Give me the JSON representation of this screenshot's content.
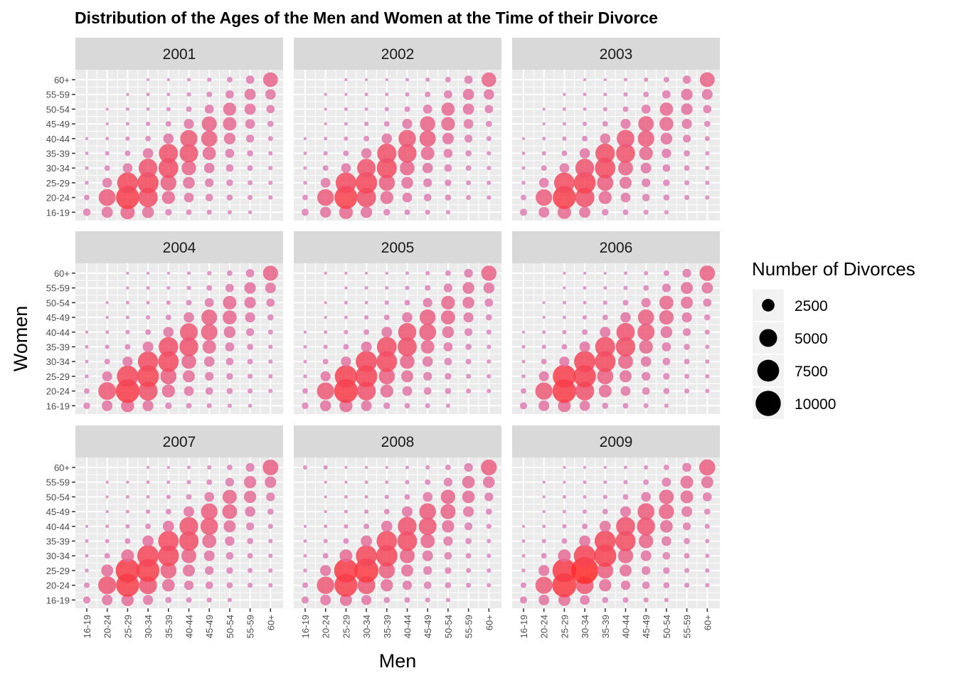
{
  "chart_data": {
    "type": "scatter",
    "title": "Distribution of the Ages of the Men and Women at the Time of their Divorce",
    "xlabel": "Men",
    "ylabel": "Women",
    "age_groups": [
      "16-19",
      "20-24",
      "25-29",
      "30-34",
      "35-39",
      "40-44",
      "45-49",
      "50-54",
      "55-59",
      "60+"
    ],
    "legend": {
      "title": "Number of Divorces",
      "position": "right",
      "breaks": [
        2500,
        5000,
        7500,
        10000
      ],
      "labels": [
        "2500",
        "5000",
        "7500",
        "10000"
      ]
    },
    "size_range": [
      100,
      11500
    ],
    "colors": {
      "low": "#d88ac8",
      "high": "#ff2a2a",
      "panel_bg": "#ebebeb",
      "strip_bg": "#d9d9d9",
      "grid": "#ffffff"
    },
    "panels": [
      {
        "year": "2001",
        "z": [
          [
            900,
            2000,
            3200,
            2200,
            700,
            500,
            400,
            300,
            250,
            0
          ],
          [
            500,
            4500,
            8500,
            6000,
            2700,
            1500,
            900,
            600,
            400,
            300
          ],
          [
            250,
            1500,
            6800,
            7100,
            4000,
            2200,
            1200,
            700,
            400,
            300
          ],
          [
            200,
            500,
            1500,
            5500,
            6200,
            3300,
            1700,
            900,
            500,
            300
          ],
          [
            200,
            300,
            500,
            1700,
            5700,
            5400,
            2800,
            1300,
            600,
            300
          ],
          [
            150,
            200,
            300,
            500,
            1700,
            4700,
            4100,
            2100,
            1000,
            400
          ],
          [
            0,
            150,
            200,
            300,
            500,
            1600,
            3600,
            2900,
            1500,
            600
          ],
          [
            0,
            150,
            200,
            200,
            300,
            500,
            1300,
            2700,
            2000,
            1100
          ],
          [
            0,
            0,
            150,
            200,
            200,
            300,
            500,
            1100,
            2000,
            1700
          ],
          [
            0,
            0,
            0,
            150,
            150,
            200,
            300,
            500,
            1100,
            3400
          ]
        ]
      },
      {
        "year": "2002",
        "z": [
          [
            800,
            1900,
            3000,
            2100,
            700,
            500,
            400,
            300,
            0,
            0
          ],
          [
            500,
            4400,
            8300,
            5900,
            2700,
            1500,
            900,
            600,
            400,
            300
          ],
          [
            250,
            1500,
            6700,
            7300,
            4100,
            2200,
            1200,
            700,
            400,
            300
          ],
          [
            200,
            500,
            1500,
            5400,
            6400,
            3400,
            1700,
            900,
            500,
            300
          ],
          [
            200,
            300,
            500,
            1700,
            5900,
            5500,
            2900,
            1300,
            600,
            300
          ],
          [
            150,
            200,
            300,
            500,
            1700,
            4800,
            4200,
            2100,
            1000,
            400
          ],
          [
            0,
            150,
            200,
            300,
            500,
            1600,
            3700,
            3000,
            1500,
            600
          ],
          [
            0,
            150,
            200,
            200,
            300,
            500,
            1300,
            2800,
            2000,
            1100
          ],
          [
            0,
            150,
            150,
            200,
            200,
            300,
            500,
            1100,
            2000,
            1700
          ],
          [
            0,
            0,
            150,
            150,
            150,
            200,
            300,
            500,
            1100,
            3400
          ]
        ]
      },
      {
        "year": "2003",
        "z": [
          [
            800,
            1800,
            2900,
            2000,
            700,
            500,
            400,
            300,
            0,
            0
          ],
          [
            500,
            4300,
            8400,
            5900,
            2700,
            1500,
            900,
            600,
            400,
            300
          ],
          [
            250,
            1500,
            6600,
            7500,
            4200,
            2300,
            1200,
            700,
            400,
            300
          ],
          [
            200,
            500,
            1500,
            5500,
            6600,
            3500,
            1800,
            900,
            500,
            300
          ],
          [
            200,
            300,
            500,
            1700,
            6000,
            5700,
            3000,
            1400,
            600,
            300
          ],
          [
            150,
            200,
            300,
            500,
            1700,
            4900,
            4300,
            2200,
            1000,
            400
          ],
          [
            0,
            150,
            200,
            300,
            500,
            1600,
            3800,
            3100,
            1600,
            600
          ],
          [
            0,
            150,
            200,
            200,
            300,
            500,
            1300,
            2800,
            2100,
            1100
          ],
          [
            0,
            0,
            150,
            200,
            200,
            300,
            500,
            1100,
            2100,
            1800
          ],
          [
            0,
            0,
            0,
            150,
            150,
            200,
            300,
            500,
            1100,
            3500
          ]
        ]
      },
      {
        "year": "2004",
        "z": [
          [
            700,
            1800,
            2700,
            1900,
            700,
            500,
            400,
            300,
            250,
            0
          ],
          [
            500,
            5000,
            8800,
            5800,
            2700,
            1500,
            900,
            600,
            400,
            300
          ],
          [
            250,
            1600,
            7200,
            7600,
            4100,
            2300,
            1200,
            700,
            400,
            300
          ],
          [
            200,
            500,
            1600,
            6500,
            6700,
            3400,
            1700,
            900,
            500,
            300
          ],
          [
            200,
            300,
            500,
            1800,
            6000,
            5600,
            2900,
            1300,
            600,
            300
          ],
          [
            150,
            200,
            300,
            500,
            1700,
            5000,
            4300,
            2200,
            1000,
            400
          ],
          [
            0,
            150,
            200,
            300,
            500,
            1700,
            3900,
            3100,
            1600,
            600
          ],
          [
            0,
            150,
            200,
            200,
            300,
            500,
            1300,
            2900,
            2100,
            1100
          ],
          [
            0,
            0,
            150,
            200,
            200,
            300,
            500,
            1100,
            2100,
            1800
          ],
          [
            0,
            0,
            150,
            150,
            150,
            200,
            300,
            500,
            1100,
            3600
          ]
        ]
      },
      {
        "year": "2005",
        "z": [
          [
            700,
            1900,
            2700,
            1800,
            700,
            500,
            400,
            300,
            0,
            0
          ],
          [
            500,
            4700,
            8900,
            5600,
            2700,
            1500,
            900,
            600,
            400,
            300
          ],
          [
            250,
            1600,
            7800,
            7500,
            4100,
            2300,
            1200,
            700,
            400,
            300
          ],
          [
            200,
            500,
            1600,
            7100,
            6700,
            3400,
            1700,
            900,
            500,
            300
          ],
          [
            200,
            300,
            500,
            1800,
            6200,
            5800,
            2900,
            1300,
            600,
            300
          ],
          [
            150,
            200,
            300,
            500,
            1800,
            5200,
            4500,
            2200,
            1000,
            400
          ],
          [
            0,
            150,
            200,
            300,
            500,
            1700,
            4000,
            3200,
            1600,
            600
          ],
          [
            0,
            150,
            200,
            200,
            300,
            500,
            1400,
            3000,
            2200,
            1100
          ],
          [
            0,
            0,
            150,
            200,
            200,
            300,
            500,
            1200,
            2200,
            1900
          ],
          [
            0,
            150,
            150,
            150,
            150,
            200,
            300,
            500,
            1200,
            3700
          ]
        ]
      },
      {
        "year": "2006",
        "z": [
          [
            800,
            1800,
            2600,
            1700,
            600,
            500,
            400,
            300,
            0,
            0
          ],
          [
            500,
            4700,
            8800,
            5600,
            2600,
            1500,
            900,
            600,
            400,
            300
          ],
          [
            250,
            1600,
            8400,
            7900,
            4100,
            2300,
            1200,
            700,
            400,
            300
          ],
          [
            200,
            500,
            1600,
            7200,
            6800,
            3500,
            1700,
            900,
            500,
            300
          ],
          [
            200,
            300,
            500,
            1800,
            6300,
            6000,
            3000,
            1300,
            600,
            300
          ],
          [
            150,
            200,
            300,
            500,
            1800,
            5300,
            4600,
            2200,
            1000,
            400
          ],
          [
            0,
            150,
            200,
            300,
            500,
            1700,
            4100,
            3300,
            1600,
            600
          ],
          [
            0,
            150,
            200,
            200,
            300,
            500,
            1400,
            3100,
            2300,
            1100
          ],
          [
            0,
            0,
            150,
            200,
            200,
            300,
            500,
            1200,
            2300,
            2000
          ],
          [
            0,
            0,
            150,
            150,
            150,
            200,
            300,
            500,
            1200,
            3800
          ]
        ]
      },
      {
        "year": "2007",
        "z": [
          [
            800,
            1800,
            2400,
            1600,
            600,
            500,
            400,
            300,
            0,
            0
          ],
          [
            500,
            5100,
            8400,
            5100,
            2500,
            1400,
            900,
            600,
            400,
            300
          ],
          [
            250,
            2300,
            9000,
            8300,
            4100,
            2300,
            1200,
            700,
            400,
            300
          ],
          [
            200,
            500,
            2600,
            7300,
            6900,
            3500,
            1800,
            900,
            500,
            300
          ],
          [
            200,
            300,
            500,
            2000,
            6600,
            6000,
            3100,
            1400,
            600,
            300
          ],
          [
            150,
            200,
            300,
            500,
            2000,
            5500,
            4800,
            2300,
            1000,
            400
          ],
          [
            0,
            150,
            200,
            300,
            500,
            1800,
            4300,
            3500,
            1700,
            600
          ],
          [
            0,
            150,
            200,
            200,
            300,
            500,
            1500,
            3200,
            2400,
            1200
          ],
          [
            0,
            150,
            150,
            200,
            200,
            300,
            500,
            1200,
            2400,
            2100
          ],
          [
            0,
            0,
            0,
            150,
            150,
            200,
            300,
            500,
            1200,
            3900
          ]
        ]
      },
      {
        "year": "2008",
        "z": [
          [
            800,
            1800,
            2300,
            1600,
            600,
            500,
            400,
            300,
            0,
            0
          ],
          [
            500,
            4800,
            8300,
            5000,
            2400,
            1400,
            900,
            600,
            400,
            300
          ],
          [
            250,
            1900,
            8900,
            9200,
            4100,
            2300,
            1200,
            700,
            400,
            300
          ],
          [
            200,
            500,
            2600,
            7000,
            7200,
            3500,
            1800,
            900,
            500,
            300
          ],
          [
            200,
            300,
            500,
            2000,
            6600,
            6200,
            3200,
            1400,
            600,
            300
          ],
          [
            150,
            200,
            300,
            500,
            2000,
            5600,
            5000,
            2400,
            1000,
            400
          ],
          [
            0,
            150,
            200,
            300,
            500,
            1800,
            4400,
            3600,
            1800,
            600
          ],
          [
            0,
            150,
            200,
            200,
            300,
            500,
            1500,
            3300,
            2500,
            1200
          ],
          [
            0,
            150,
            150,
            200,
            200,
            300,
            500,
            1200,
            2500,
            2200
          ],
          [
            300,
            300,
            150,
            150,
            150,
            200,
            300,
            500,
            1200,
            4000
          ]
        ]
      },
      {
        "year": "2009",
        "z": [
          [
            800,
            1800,
            2300,
            1500,
            600,
            500,
            400,
            300,
            0,
            0
          ],
          [
            500,
            4600,
            9100,
            4900,
            2400,
            1400,
            900,
            600,
            400,
            300
          ],
          [
            250,
            1900,
            8800,
            11500,
            4100,
            2300,
            1200,
            700,
            400,
            300
          ],
          [
            200,
            500,
            2600,
            7500,
            7800,
            3600,
            1800,
            900,
            500,
            300
          ],
          [
            200,
            300,
            500,
            2000,
            7000,
            6400,
            3300,
            1500,
            600,
            300
          ],
          [
            150,
            200,
            300,
            500,
            2000,
            5700,
            5200,
            2500,
            1000,
            400
          ],
          [
            0,
            150,
            200,
            300,
            500,
            1800,
            4500,
            3700,
            1800,
            600
          ],
          [
            0,
            150,
            200,
            200,
            300,
            500,
            1500,
            3400,
            2600,
            1300
          ],
          [
            0,
            150,
            150,
            200,
            200,
            300,
            500,
            1300,
            2600,
            2300
          ],
          [
            0,
            0,
            150,
            150,
            150,
            200,
            300,
            500,
            1300,
            4100
          ]
        ]
      }
    ]
  }
}
